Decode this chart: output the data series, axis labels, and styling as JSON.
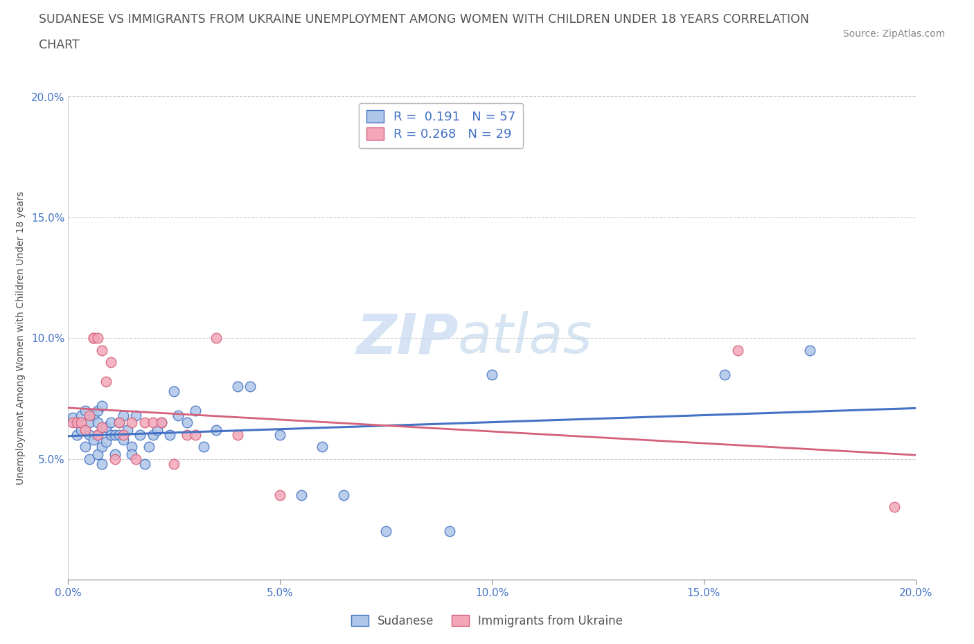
{
  "title_line1": "SUDANESE VS IMMIGRANTS FROM UKRAINE UNEMPLOYMENT AMONG WOMEN WITH CHILDREN UNDER 18 YEARS CORRELATION",
  "title_line2": "CHART",
  "source": "Source: ZipAtlas.com",
  "ylabel": "Unemployment Among Women with Children Under 18 years",
  "xlim": [
    0.0,
    0.2
  ],
  "ylim": [
    0.0,
    0.2
  ],
  "xticks": [
    0.0,
    0.05,
    0.1,
    0.15,
    0.2
  ],
  "yticks": [
    0.05,
    0.1,
    0.15,
    0.2
  ],
  "xtick_labels": [
    "0.0%",
    "5.0%",
    "10.0%",
    "15.0%",
    "20.0%"
  ],
  "ytick_labels": [
    "5.0%",
    "10.0%",
    "15.0%",
    "20.0%"
  ],
  "sudanese_color": "#aec6e8",
  "ukraine_color": "#f4a7b9",
  "sudanese_line_color": "#4472c4",
  "ukraine_line_color": "#d4607a",
  "R_sudanese": 0.191,
  "N_sudanese": 57,
  "R_ukraine": 0.268,
  "N_ukraine": 29,
  "watermark_zip": "ZIP",
  "watermark_atlas": "atlas",
  "legend_label_sudanese": "Sudanese",
  "legend_label_ukraine": "Immigrants from Ukraine",
  "sudanese_x": [
    0.001,
    0.002,
    0.002,
    0.003,
    0.003,
    0.004,
    0.004,
    0.005,
    0.005,
    0.005,
    0.006,
    0.006,
    0.007,
    0.007,
    0.007,
    0.007,
    0.008,
    0.008,
    0.008,
    0.009,
    0.009,
    0.01,
    0.01,
    0.011,
    0.011,
    0.012,
    0.012,
    0.013,
    0.013,
    0.014,
    0.015,
    0.015,
    0.016,
    0.017,
    0.018,
    0.019,
    0.02,
    0.021,
    0.022,
    0.024,
    0.025,
    0.026,
    0.028,
    0.03,
    0.032,
    0.035,
    0.04,
    0.043,
    0.05,
    0.055,
    0.06,
    0.065,
    0.075,
    0.09,
    0.1,
    0.155,
    0.175
  ],
  "sudanese_y": [
    0.067,
    0.065,
    0.06,
    0.068,
    0.062,
    0.07,
    0.055,
    0.065,
    0.06,
    0.05,
    0.068,
    0.058,
    0.07,
    0.065,
    0.06,
    0.052,
    0.072,
    0.055,
    0.048,
    0.063,
    0.057,
    0.065,
    0.06,
    0.06,
    0.052,
    0.065,
    0.06,
    0.068,
    0.058,
    0.062,
    0.055,
    0.052,
    0.068,
    0.06,
    0.048,
    0.055,
    0.06,
    0.062,
    0.065,
    0.06,
    0.078,
    0.068,
    0.065,
    0.07,
    0.055,
    0.062,
    0.08,
    0.08,
    0.06,
    0.035,
    0.055,
    0.035,
    0.02,
    0.02,
    0.085,
    0.085,
    0.095
  ],
  "ukraine_x": [
    0.001,
    0.002,
    0.003,
    0.004,
    0.005,
    0.006,
    0.006,
    0.007,
    0.007,
    0.008,
    0.008,
    0.009,
    0.01,
    0.011,
    0.012,
    0.013,
    0.015,
    0.016,
    0.018,
    0.02,
    0.022,
    0.025,
    0.028,
    0.03,
    0.035,
    0.04,
    0.05,
    0.158,
    0.195
  ],
  "ukraine_y": [
    0.065,
    0.065,
    0.065,
    0.062,
    0.068,
    0.1,
    0.1,
    0.1,
    0.06,
    0.095,
    0.063,
    0.082,
    0.09,
    0.05,
    0.065,
    0.06,
    0.065,
    0.05,
    0.065,
    0.065,
    0.065,
    0.048,
    0.06,
    0.06,
    0.1,
    0.06,
    0.035,
    0.095,
    0.03
  ]
}
